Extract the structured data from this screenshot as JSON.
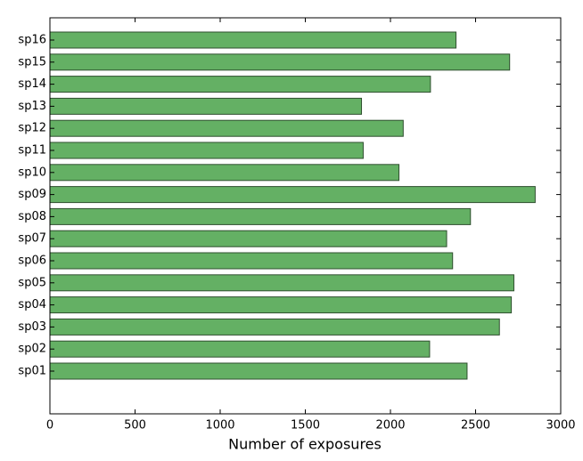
{
  "chart_data": {
    "type": "barh",
    "xlabel": "Number of exposures",
    "categories": [
      "sp01",
      "sp02",
      "sp03",
      "sp04",
      "sp05",
      "sp06",
      "sp07",
      "sp08",
      "sp09",
      "sp10",
      "sp11",
      "sp12",
      "sp13",
      "sp14",
      "sp15",
      "sp16"
    ],
    "values": [
      2450,
      2230,
      2640,
      2710,
      2725,
      2365,
      2330,
      2470,
      2850,
      2050,
      1840,
      2075,
      1830,
      2235,
      2700,
      2385
    ],
    "color": "#64b064",
    "xlim": [
      0,
      3000
    ],
    "xticks": [
      0,
      500,
      1000,
      1500,
      2000,
      2500,
      3000
    ],
    "grid": false
  }
}
